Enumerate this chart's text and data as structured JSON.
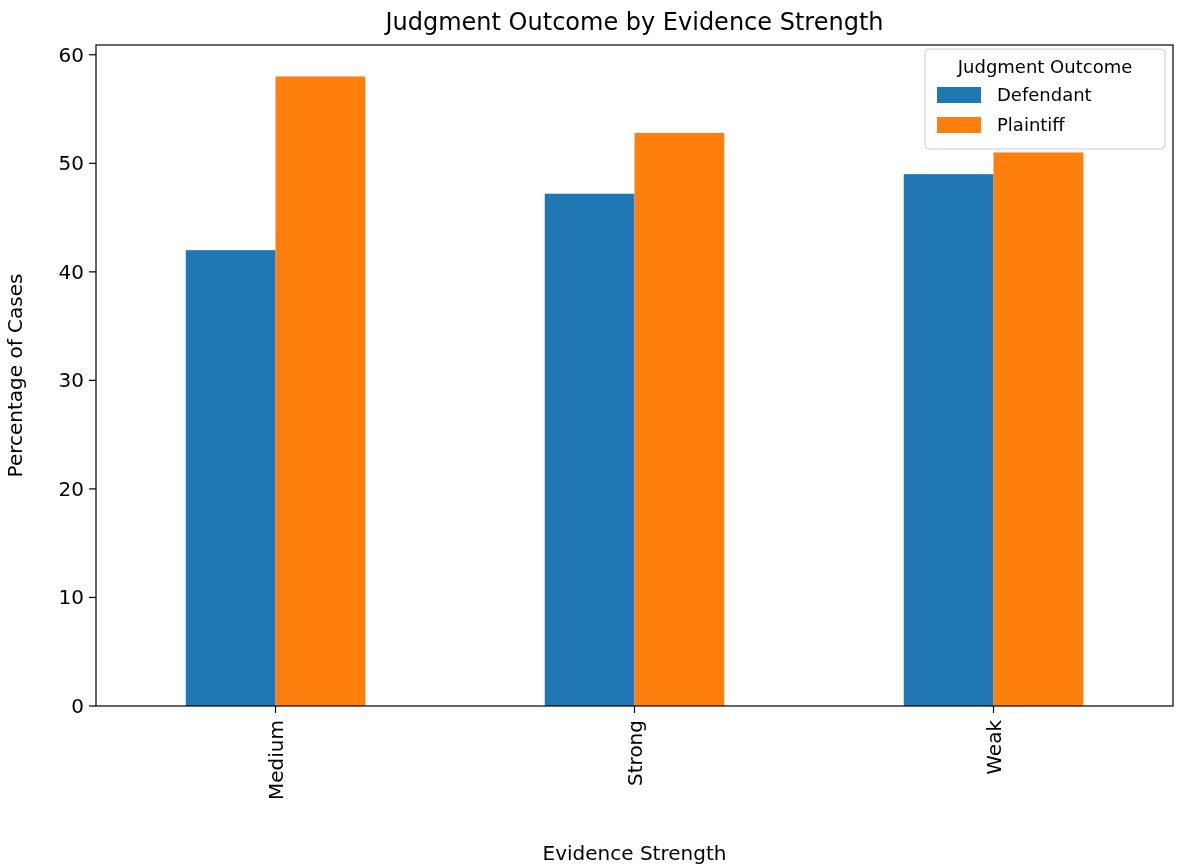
{
  "chart_data": {
    "type": "bar",
    "title": "Judgment Outcome by Evidence Strength",
    "xlabel": "Evidence Strength",
    "ylabel": "Percentage of Cases",
    "legend_title": "Judgment Outcome",
    "categories": [
      "Medium",
      "Strong",
      "Weak"
    ],
    "series": [
      {
        "name": "Defendant",
        "color": "#1f77b4",
        "values": [
          42,
          47.2,
          49
        ]
      },
      {
        "name": "Plaintiff",
        "color": "#ff7f0e",
        "values": [
          58,
          52.8,
          51
        ]
      }
    ],
    "ylim": [
      0,
      60.9
    ],
    "yticks": [
      0,
      10,
      20,
      30,
      40,
      50,
      60
    ],
    "grid": false,
    "legend": "top right"
  }
}
